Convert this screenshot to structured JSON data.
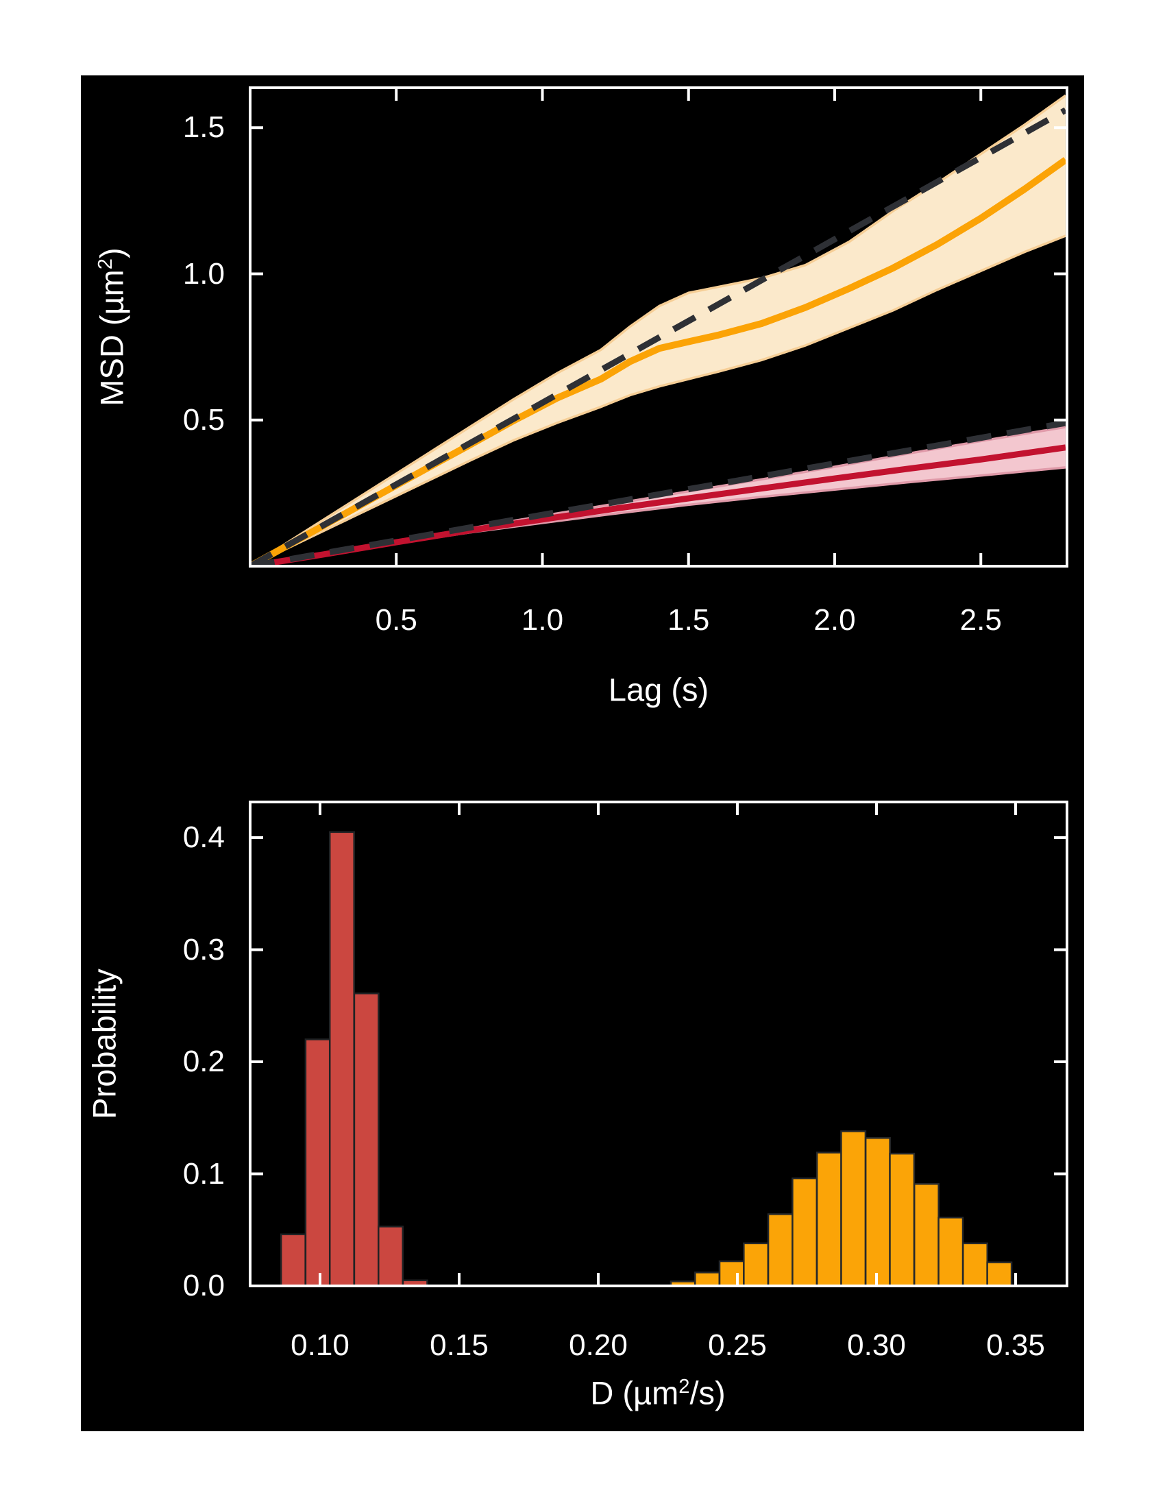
{
  "figure": {
    "background": "#ffffff",
    "canvas_color": "#000000",
    "text_color": "#ffffff",
    "frame_color": "#ffffff"
  },
  "chart_data": [
    {
      "id": "msd-vs-lag",
      "type": "line",
      "title": "",
      "xlabel": "Lag (s)",
      "ylabel_parts": {
        "pre": "MSD (µm",
        "sup": "2",
        "post": ")"
      },
      "xlim": [
        0,
        2.795
      ],
      "ylim": [
        0,
        1.637
      ],
      "grid": false,
      "legend": "none",
      "xticks": {
        "values": [
          0.5,
          1.0,
          1.5,
          2.0,
          2.5
        ],
        "labels": [
          "0.5",
          "1.0",
          "1.5",
          "2.0",
          "2.5"
        ]
      },
      "yticks": {
        "values": [
          0.5,
          1.0,
          1.5
        ],
        "labels": [
          "0.5",
          "1.0",
          "1.5"
        ]
      },
      "series": [
        {
          "name": "fast-population-msd-band",
          "kind": "band",
          "fill": "#FBE9CB",
          "edge": "#F6CE96",
          "x": [
            0,
            0.15,
            0.3,
            0.45,
            0.6,
            0.75,
            0.9,
            1.05,
            1.2,
            1.3,
            1.4,
            1.5,
            1.6,
            1.75,
            1.9,
            2.05,
            2.2,
            2.35,
            2.5,
            2.65,
            2.79
          ],
          "upper": [
            0,
            0.095,
            0.19,
            0.285,
            0.38,
            0.475,
            0.57,
            0.66,
            0.74,
            0.82,
            0.89,
            0.935,
            0.955,
            0.985,
            1.03,
            1.11,
            1.215,
            1.31,
            1.41,
            1.51,
            1.61
          ],
          "lower": [
            0,
            0.072,
            0.144,
            0.216,
            0.288,
            0.36,
            0.43,
            0.49,
            0.545,
            0.585,
            0.615,
            0.64,
            0.665,
            0.705,
            0.755,
            0.815,
            0.875,
            0.945,
            1.01,
            1.075,
            1.13
          ]
        },
        {
          "name": "slow-population-msd-band",
          "kind": "band",
          "fill": "#F3C7CF",
          "edge": "#E09AA9",
          "x": [
            0,
            0.25,
            0.5,
            0.75,
            1.0,
            1.25,
            1.5,
            1.75,
            2.0,
            2.25,
            2.5,
            2.79
          ],
          "upper": [
            0,
            0.042,
            0.086,
            0.129,
            0.172,
            0.214,
            0.256,
            0.297,
            0.34,
            0.385,
            0.428,
            0.476
          ],
          "lower": [
            0,
            0.038,
            0.078,
            0.115,
            0.148,
            0.18,
            0.21,
            0.237,
            0.262,
            0.287,
            0.31,
            0.338
          ]
        },
        {
          "name": "fast-population-msd-mean",
          "kind": "line",
          "color": "#FBA306",
          "width": 10,
          "x": [
            0,
            0.15,
            0.3,
            0.45,
            0.6,
            0.75,
            0.9,
            1.05,
            1.2,
            1.3,
            1.4,
            1.5,
            1.6,
            1.75,
            1.9,
            2.05,
            2.2,
            2.35,
            2.5,
            2.65,
            2.79
          ],
          "y": [
            0,
            0.083,
            0.166,
            0.249,
            0.332,
            0.414,
            0.497,
            0.575,
            0.64,
            0.7,
            0.745,
            0.768,
            0.79,
            0.83,
            0.885,
            0.95,
            1.02,
            1.1,
            1.19,
            1.29,
            1.39
          ]
        },
        {
          "name": "slow-population-msd-mean",
          "kind": "line",
          "color": "#C2122F",
          "width": 9,
          "x": [
            0,
            0.25,
            0.5,
            0.75,
            1.0,
            1.25,
            1.5,
            1.75,
            2.0,
            2.25,
            2.5,
            2.79
          ],
          "y": [
            0,
            0.04,
            0.082,
            0.122,
            0.16,
            0.197,
            0.232,
            0.266,
            0.3,
            0.333,
            0.365,
            0.406
          ]
        },
        {
          "name": "fast-population-linear-fit",
          "kind": "dashed",
          "color": "#2E3035",
          "width": 9,
          "x": [
            0,
            2.79
          ],
          "y": [
            0,
            1.56
          ]
        },
        {
          "name": "slow-population-linear-fit",
          "kind": "dashed",
          "color": "#2E3035",
          "width": 9,
          "x": [
            0,
            2.79
          ],
          "y": [
            0,
            0.49
          ]
        }
      ]
    },
    {
      "id": "diffusion-histogram",
      "type": "bar",
      "title": "",
      "xlabel_parts": {
        "pre": "D (µm",
        "sup": "2",
        "post": "/s)"
      },
      "ylabel": "Probability",
      "xlim": [
        0.0749,
        0.3685
      ],
      "ylim": [
        0,
        0.4318
      ],
      "grid": false,
      "legend": "none",
      "bin_width": 0.00874,
      "xticks": {
        "values": [
          0.1,
          0.15,
          0.2,
          0.25,
          0.3,
          0.35
        ],
        "labels": [
          "0.10",
          "0.15",
          "0.20",
          "0.25",
          "0.30",
          "0.35"
        ]
      },
      "yticks": {
        "values": [
          0.0,
          0.1,
          0.2,
          0.3,
          0.4
        ],
        "labels": [
          "0.0",
          "0.1",
          "0.2",
          "0.3",
          "0.4"
        ]
      },
      "series": [
        {
          "name": "slow-population-D-histogram",
          "fill": "#CB4740",
          "edge": "#202224",
          "bin_left": [
            0.086,
            0.0948,
            0.1035,
            0.1123,
            0.121,
            0.1298
          ],
          "heights": [
            0.046,
            0.22,
            0.405,
            0.261,
            0.053,
            0.005
          ]
        },
        {
          "name": "fast-population-D-histogram",
          "fill": "#FBA407",
          "edge": "#26282A",
          "bin_left": [
            0.2261,
            0.2348,
            0.2436,
            0.2523,
            0.2611,
            0.2698,
            0.2786,
            0.2873,
            0.2961,
            0.3048,
            0.3136,
            0.3223,
            0.3311,
            0.3398
          ],
          "heights": [
            0.004,
            0.012,
            0.022,
            0.038,
            0.064,
            0.096,
            0.119,
            0.138,
            0.132,
            0.118,
            0.091,
            0.061,
            0.038,
            0.021
          ]
        }
      ]
    }
  ]
}
